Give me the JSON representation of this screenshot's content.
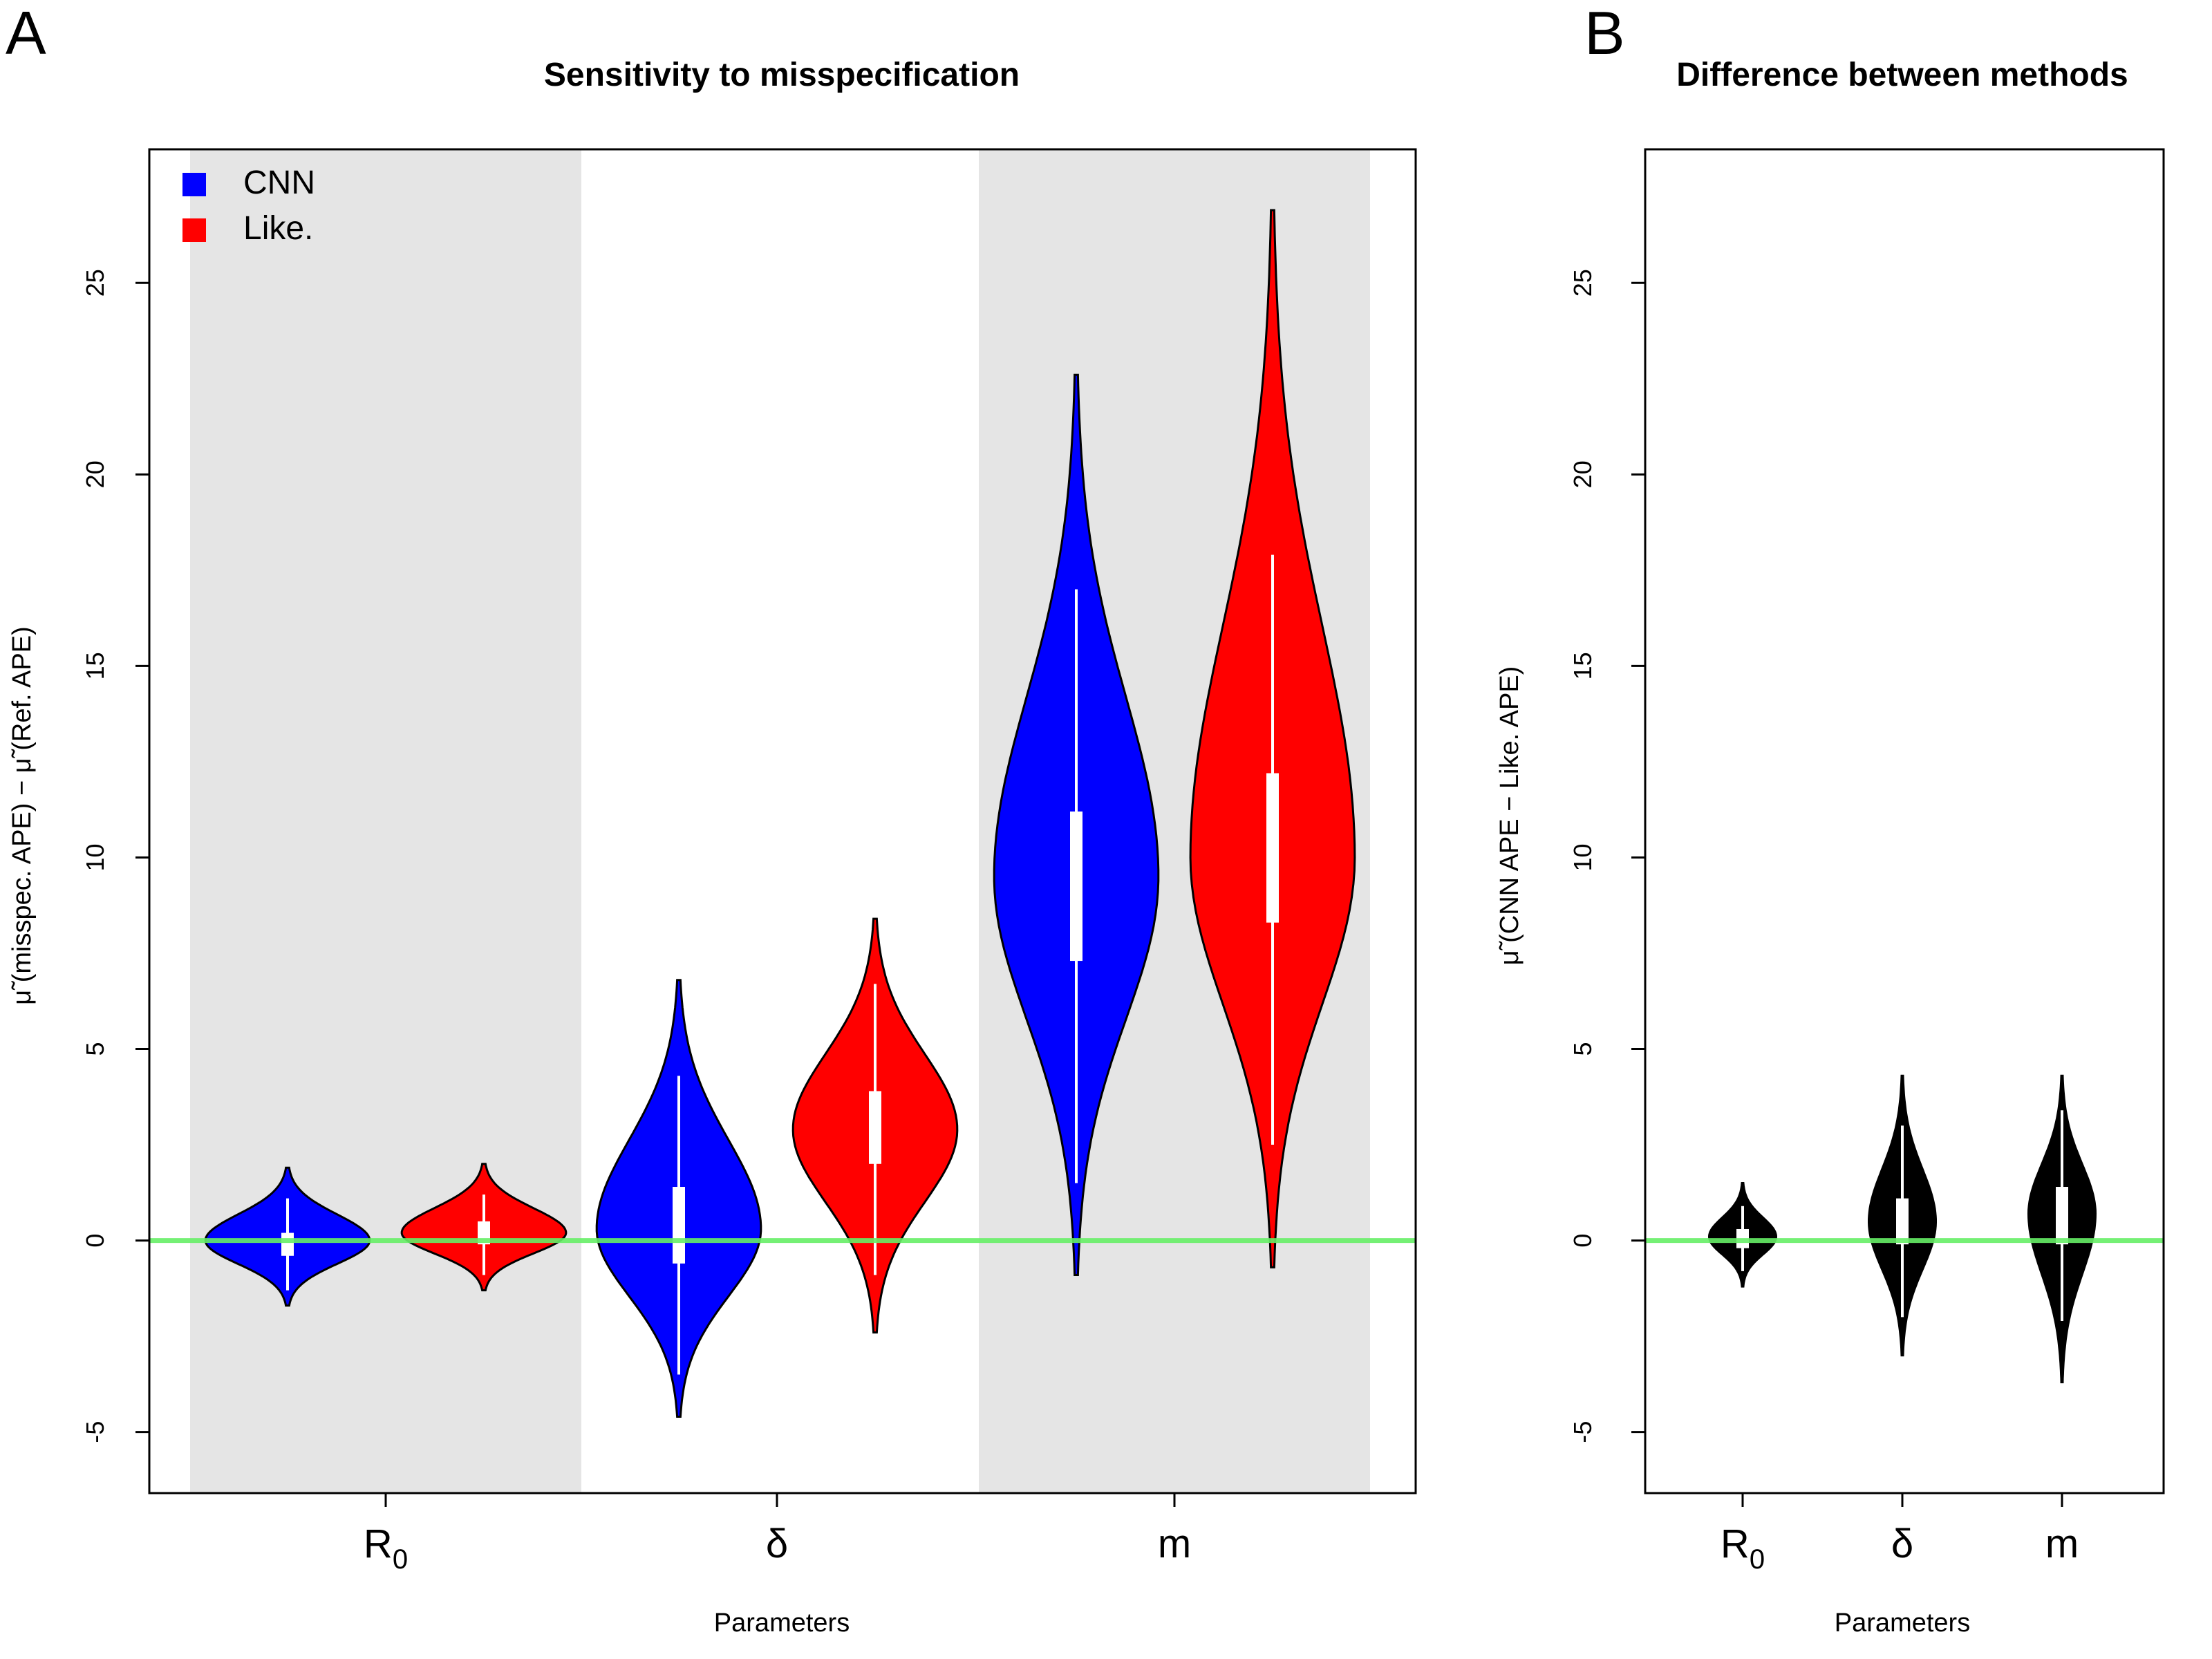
{
  "chart_data": [
    {
      "panel": "A",
      "type": "violin",
      "title": "Sensitivity to misspecification",
      "xlabel": "Parameters",
      "ylabel": "μ̃ (misspec. APE) − μ̃ (Ref. APE)",
      "ylim": [
        -5.8,
        28
      ],
      "yticks": [
        -5,
        0,
        5,
        10,
        15,
        20,
        25
      ],
      "reference_line": 0,
      "reference_color": "#66ee66",
      "categories": [
        {
          "label": "R",
          "sub": "0",
          "shaded": true
        },
        {
          "label": "δ",
          "sub": "",
          "shaded": false
        },
        {
          "label": "m",
          "sub": "",
          "shaded": true
        }
      ],
      "legend": {
        "position": "top-left",
        "entries": [
          {
            "name": "CNN",
            "color": "#0000ff"
          },
          {
            "name": "Like.",
            "color": "#ff0000"
          }
        ]
      },
      "series": [
        {
          "name": "CNN",
          "color": "#0000ff",
          "violins": [
            {
              "category": "R0",
              "min": -1.7,
              "max": 1.9,
              "q1": -0.4,
              "median": -0.1,
              "q3": 0.2,
              "whisker_low": -1.3,
              "whisker_high": 1.1,
              "mode": 0.0,
              "halfwidth": 0.42
            },
            {
              "category": "δ",
              "min": -4.6,
              "max": 6.8,
              "q1": -0.6,
              "median": 0.4,
              "q3": 1.4,
              "whisker_low": -3.5,
              "whisker_high": 4.3,
              "mode": 0.3,
              "halfwidth": 0.42
            },
            {
              "category": "m",
              "min": -0.9,
              "max": 22.6,
              "q1": 7.3,
              "median": 9.3,
              "q3": 11.2,
              "whisker_low": 1.5,
              "whisker_high": 17.0,
              "mode": 9.5,
              "halfwidth": 0.42
            }
          ]
        },
        {
          "name": "Like.",
          "color": "#ff0000",
          "violins": [
            {
              "category": "R0",
              "min": -1.3,
              "max": 2.0,
              "q1": -0.1,
              "median": 0.2,
              "q3": 0.5,
              "whisker_low": -0.9,
              "whisker_high": 1.2,
              "mode": 0.2,
              "halfwidth": 0.42
            },
            {
              "category": "δ",
              "min": -2.4,
              "max": 8.4,
              "q1": 2.0,
              "median": 3.0,
              "q3": 3.9,
              "whisker_low": -0.9,
              "whisker_high": 6.7,
              "mode": 2.9,
              "halfwidth": 0.42
            },
            {
              "category": "m",
              "min": -0.7,
              "max": 26.9,
              "q1": 8.3,
              "median": 10.2,
              "q3": 12.2,
              "whisker_low": 2.5,
              "whisker_high": 17.9,
              "mode": 10.0,
              "halfwidth": 0.42
            }
          ]
        }
      ]
    },
    {
      "panel": "B",
      "type": "violin",
      "title": "Difference between methods",
      "xlabel": "Parameters",
      "ylabel": "μ̃ (CNN APE − Like. APE)",
      "ylim": [
        -5.8,
        28
      ],
      "yticks": [
        -5,
        0,
        5,
        10,
        15,
        20,
        25
      ],
      "reference_line": 0,
      "reference_color": "#66ee66",
      "categories": [
        {
          "label": "R",
          "sub": "0"
        },
        {
          "label": "δ",
          "sub": ""
        },
        {
          "label": "m",
          "sub": ""
        }
      ],
      "series": [
        {
          "name": "",
          "color": "#000000",
          "violins": [
            {
              "category": "R0",
              "min": -1.2,
              "max": 1.5,
              "q1": -0.2,
              "median": 0.1,
              "q3": 0.3,
              "whisker_low": -0.8,
              "whisker_high": 0.9,
              "mode": 0.1,
              "halfwidth": 0.42
            },
            {
              "category": "δ",
              "min": -3.0,
              "max": 4.3,
              "q1": -0.1,
              "median": 0.4,
              "q3": 1.1,
              "whisker_low": -2.0,
              "whisker_high": 3.0,
              "mode": 0.5,
              "halfwidth": 0.42
            },
            {
              "category": "m",
              "min": -3.7,
              "max": 4.3,
              "q1": -0.1,
              "median": 0.6,
              "q3": 1.4,
              "whisker_low": -2.1,
              "whisker_high": 3.4,
              "mode": 0.7,
              "halfwidth": 0.42
            }
          ]
        }
      ]
    }
  ]
}
